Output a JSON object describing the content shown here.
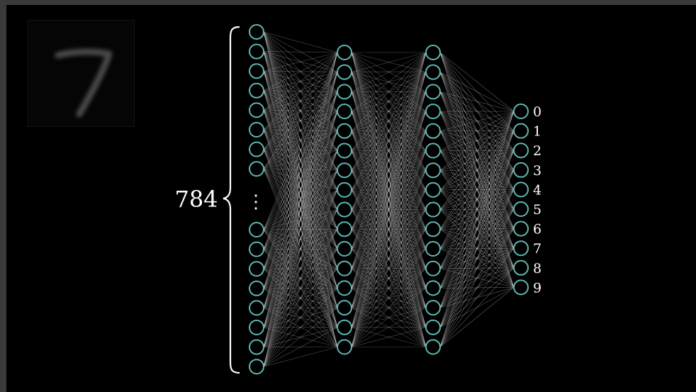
{
  "input_image": {
    "digit": "7"
  },
  "input_layer": {
    "count_label": "784",
    "ellipsis": "⋮"
  },
  "hidden_layer_1": {
    "neurons": 16
  },
  "hidden_layer_2": {
    "neurons": 16
  },
  "output_layer": {
    "labels": [
      "0",
      "1",
      "2",
      "3",
      "4",
      "5",
      "6",
      "7",
      "8",
      "9"
    ]
  },
  "colors": {
    "background": "#000000",
    "frame": "#3a3a3a",
    "neuron_stroke": "#5fb8b4",
    "edge": "#ffffff",
    "text": "#ffffff"
  }
}
